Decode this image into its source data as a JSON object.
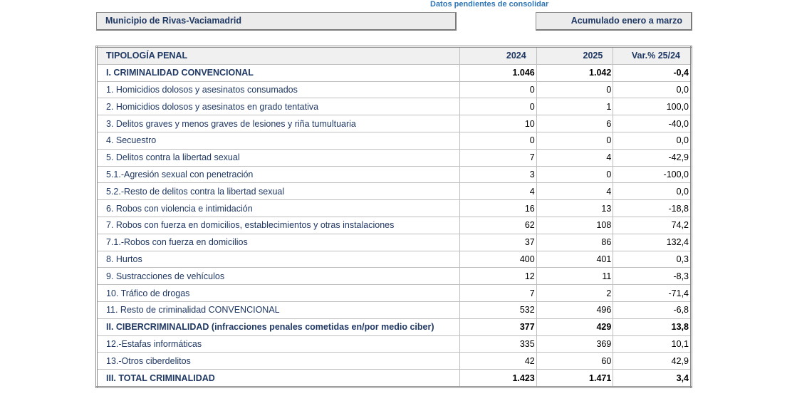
{
  "note": "Datos pendientes de consolidar",
  "municipality": "Municipio de Rivas-Vaciamadrid",
  "period": "Acumulado enero a marzo",
  "table": {
    "headers": [
      "TIPOLOGÍA PENAL",
      "2024",
      "2025",
      "Var.% 25/24"
    ],
    "rows": [
      {
        "label": "I. CRIMINALIDAD CONVENCIONAL",
        "v2024": "1.046",
        "v2025": "1.042",
        "var": "-0,4",
        "bold": true
      },
      {
        "label": "1. Homicidios dolosos y asesinatos consumados",
        "v2024": "0",
        "v2025": "0",
        "var": "0,0"
      },
      {
        "label": "2. Homicidios dolosos y asesinatos en grado tentativa",
        "v2024": "0",
        "v2025": "1",
        "var": "100,0"
      },
      {
        "label": "3. Delitos graves y menos graves de lesiones y riña tumultuaria",
        "v2024": "10",
        "v2025": "6",
        "var": "-40,0"
      },
      {
        "label": "4. Secuestro",
        "v2024": "0",
        "v2025": "0",
        "var": "0,0"
      },
      {
        "label": "5. Delitos contra la libertad sexual",
        "v2024": "7",
        "v2025": "4",
        "var": "-42,9"
      },
      {
        "label": "5.1.-Agresión sexual con penetración",
        "v2024": "3",
        "v2025": "0",
        "var": "-100,0"
      },
      {
        "label": "5.2.-Resto de delitos contra la libertad sexual",
        "v2024": "4",
        "v2025": "4",
        "var": "0,0"
      },
      {
        "label": "6. Robos con violencia e intimidación",
        "v2024": "16",
        "v2025": "13",
        "var": "-18,8"
      },
      {
        "label": "7. Robos con fuerza en domicilios, establecimientos y otras instalaciones",
        "v2024": "62",
        "v2025": "108",
        "var": "74,2"
      },
      {
        "label": "7.1.-Robos con fuerza en domicilios",
        "v2024": "37",
        "v2025": "86",
        "var": "132,4"
      },
      {
        "label": "8. Hurtos",
        "v2024": "400",
        "v2025": "401",
        "var": "0,3"
      },
      {
        "label": "9. Sustracciones de vehículos",
        "v2024": "12",
        "v2025": "11",
        "var": "-8,3"
      },
      {
        "label": "10. Tráfico de drogas",
        "v2024": "7",
        "v2025": "2",
        "var": "-71,4"
      },
      {
        "label": "11. Resto de criminalidad CONVENCIONAL",
        "v2024": "532",
        "v2025": "496",
        "var": "-6,8"
      },
      {
        "label": "II. CIBERCRIMINALIDAD (infracciones penales cometidas en/por medio ciber)",
        "v2024": "377",
        "v2025": "429",
        "var": "13,8",
        "bold": true
      },
      {
        "label": "12.-Estafas informáticas",
        "v2024": "335",
        "v2025": "369",
        "var": "10,1"
      },
      {
        "label": "13.-Otros ciberdelitos",
        "v2024": "42",
        "v2025": "60",
        "var": "42,9"
      },
      {
        "label": "III. TOTAL CRIMINALIDAD",
        "v2024": "1.423",
        "v2025": "1.471",
        "var": "3,4",
        "bold": true
      }
    ]
  }
}
